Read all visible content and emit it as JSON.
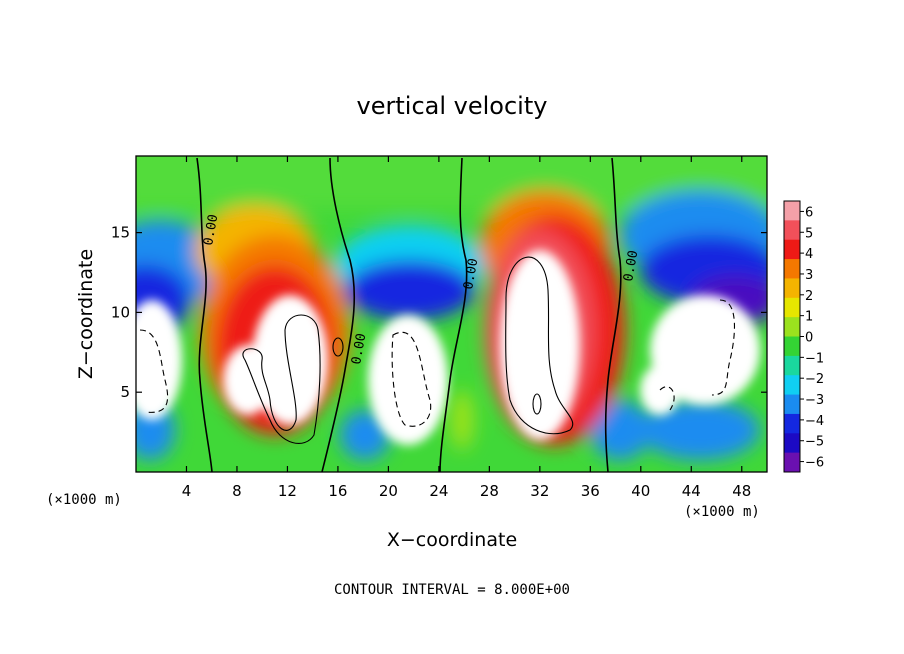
{
  "chart_data": {
    "type": "heatmap",
    "title": "vertical velocity",
    "xlabel": "X−coordinate",
    "ylabel": "Z−coordinate",
    "x_unit_label": "(×1000 m)",
    "z_unit_label": "(×1000 m)",
    "footer": "CONTOUR INTERVAL = 8.000E+00",
    "xlim": [
      0,
      50
    ],
    "ylim": [
      0,
      19.8
    ],
    "x_ticks": [
      "4",
      "8",
      "12",
      "16",
      "20",
      "24",
      "28",
      "32",
      "36",
      "40",
      "44",
      "48"
    ],
    "y_ticks": [
      "5",
      "10",
      "15"
    ],
    "colorbar": {
      "range": [
        -6,
        6
      ],
      "labels": [
        "6",
        "5",
        "4",
        "3",
        "2",
        "1",
        "0",
        "−1",
        "−2",
        "−3",
        "−4",
        "−5",
        "−6"
      ],
      "values": [
        6,
        5,
        4,
        3,
        2,
        1,
        0,
        -1,
        -2,
        -3,
        -4,
        -5,
        -6
      ],
      "colors": [
        "#f4a0a8",
        "#f2505a",
        "#ee1a16",
        "#f47800",
        "#f4b400",
        "#e6e600",
        "#9be21e",
        "#34d434",
        "#1ad89e",
        "#10cff2",
        "#1a8cf0",
        "#1428e0",
        "#1c0ac4",
        "#6a10b0"
      ]
    },
    "contour_labels": [
      "0.00",
      "0.00",
      "0.00",
      "0.00"
    ],
    "fields": {
      "updrafts": [
        {
          "x": 10.5,
          "z": 8.0,
          "amp": 13
        },
        {
          "x": 32.0,
          "z": 8.5,
          "amp": 15
        }
      ],
      "downdrafts": [
        {
          "x": 2.5,
          "z": 6.5,
          "amp": -12
        },
        {
          "x": 21.0,
          "z": 6.0,
          "amp": -13
        },
        {
          "x": 45.5,
          "z": 6.5,
          "amp": -12
        }
      ]
    }
  }
}
